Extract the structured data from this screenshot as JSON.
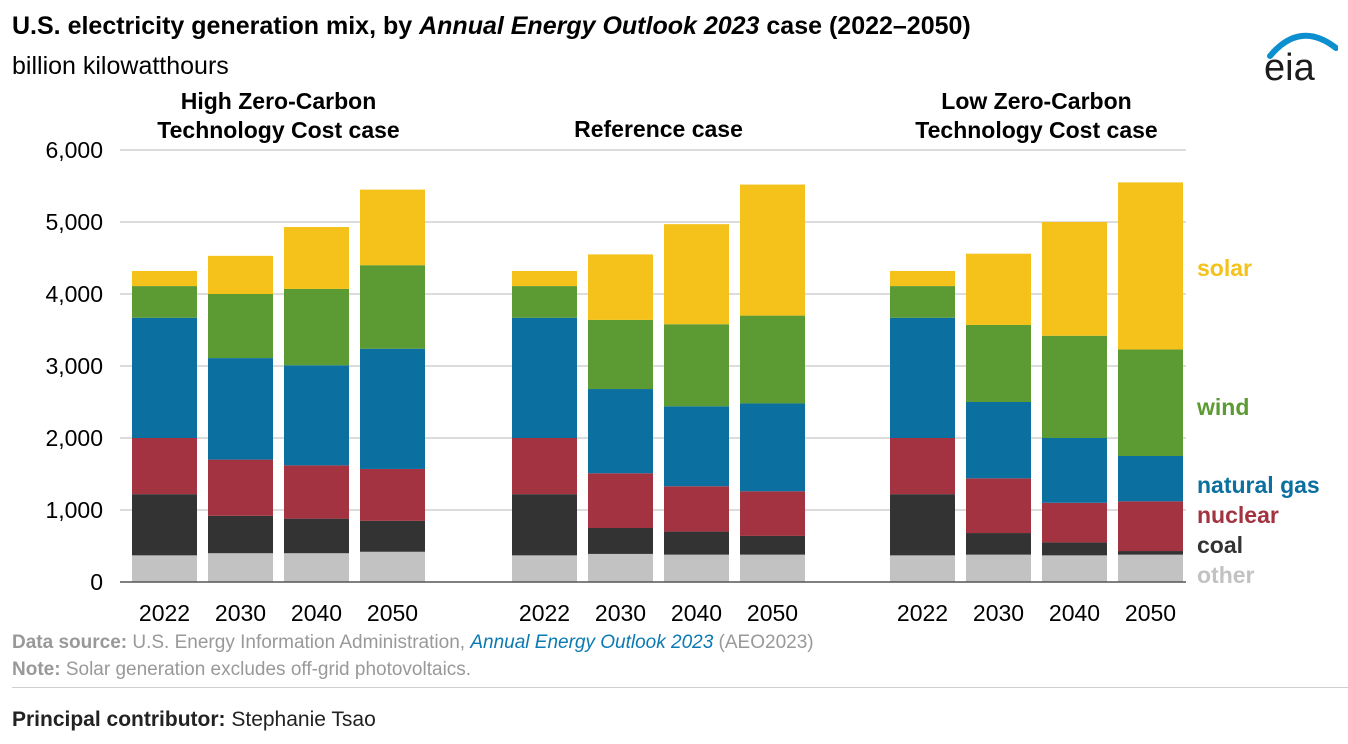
{
  "header": {
    "title_prefix": "U.S. electricity generation mix, by ",
    "title_italic": "Annual Energy Outlook 2023",
    "title_suffix": " case (2022–2050)",
    "subtitle": "billion kilowatthours",
    "logo_text": "eia"
  },
  "chart_data": {
    "type": "stacked-bar",
    "title": "U.S. electricity generation mix, by Annual Energy Outlook 2023 case (2022–2050)",
    "ylabel": "billion kilowatthours",
    "ylim": [
      0,
      6000
    ],
    "yticks": [
      0,
      1000,
      2000,
      3000,
      4000,
      5000,
      6000
    ],
    "ytick_labels": [
      "0",
      "1,000",
      "2,000",
      "3,000",
      "4,000",
      "5,000",
      "6,000"
    ],
    "grid": true,
    "stack_order": [
      "other",
      "coal",
      "nuclear",
      "natural gas",
      "wind",
      "solar"
    ],
    "colors": {
      "other": "#c2c2c2",
      "coal": "#333333",
      "nuclear": "#a33340",
      "natural gas": "#0b6fa0",
      "wind": "#5c9a33",
      "solar": "#f4c21b"
    },
    "legend_labels": [
      "solar",
      "wind",
      "natural gas",
      "nuclear",
      "coal",
      "other"
    ],
    "groups": [
      {
        "name_lines": [
          "High Zero-Carbon",
          "Technology Cost case"
        ],
        "categories": [
          "2022",
          "2030",
          "2040",
          "2050"
        ],
        "series": [
          {
            "name": "other",
            "values": [
              370,
              400,
              400,
              420
            ]
          },
          {
            "name": "coal",
            "values": [
              850,
              520,
              480,
              430
            ]
          },
          {
            "name": "nuclear",
            "values": [
              780,
              780,
              740,
              720
            ]
          },
          {
            "name": "natural gas",
            "values": [
              1670,
              1410,
              1390,
              1670
            ]
          },
          {
            "name": "wind",
            "values": [
              440,
              890,
              1060,
              1160
            ]
          },
          {
            "name": "solar",
            "values": [
              210,
              530,
              860,
              1050
            ]
          }
        ]
      },
      {
        "name_lines": [
          "Reference case"
        ],
        "categories": [
          "2022",
          "2030",
          "2040",
          "2050"
        ],
        "series": [
          {
            "name": "other",
            "values": [
              370,
              390,
              380,
              380
            ]
          },
          {
            "name": "coal",
            "values": [
              850,
              360,
              320,
              260
            ]
          },
          {
            "name": "nuclear",
            "values": [
              780,
              760,
              630,
              620
            ]
          },
          {
            "name": "natural gas",
            "values": [
              1670,
              1170,
              1110,
              1220
            ]
          },
          {
            "name": "wind",
            "values": [
              440,
              960,
              1140,
              1220
            ]
          },
          {
            "name": "solar",
            "values": [
              210,
              910,
              1390,
              1820
            ]
          }
        ]
      },
      {
        "name_lines": [
          "Low Zero-Carbon",
          "Technology Cost case"
        ],
        "categories": [
          "2022",
          "2030",
          "2040",
          "2050"
        ],
        "series": [
          {
            "name": "other",
            "values": [
              370,
              380,
              370,
              380
            ]
          },
          {
            "name": "coal",
            "values": [
              850,
              300,
              180,
              50
            ]
          },
          {
            "name": "nuclear",
            "values": [
              780,
              760,
              550,
              690
            ]
          },
          {
            "name": "natural gas",
            "values": [
              1670,
              1060,
              900,
              630
            ]
          },
          {
            "name": "wind",
            "values": [
              440,
              1070,
              1420,
              1480
            ]
          },
          {
            "name": "solar",
            "values": [
              210,
              990,
              1580,
              2320
            ]
          }
        ]
      }
    ]
  },
  "footer": {
    "source_label": "Data source:",
    "source_text": " U.S. Energy Information Administration, ",
    "source_italic": "Annual Energy Outlook 2023",
    "source_suffix": " (AEO2023)",
    "note_label": "Note:",
    "note_text": " Solar generation excludes off-grid photovoltaics.",
    "contributor_label": "Principal contributor:",
    "contributor_name": " Stephanie Tsao"
  }
}
